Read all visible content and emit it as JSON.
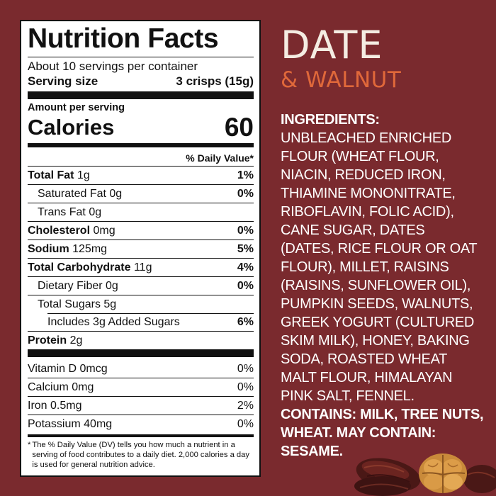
{
  "label": {
    "title": "Nutrition Facts",
    "servings_per_container": "About 10 servings per container",
    "serving_size_label": "Serving size",
    "serving_size_value": "3 crisps (15g)",
    "amount_per_serving": "Amount per serving",
    "calories_label": "Calories",
    "calories_value": "60",
    "dv_header": "% Daily Value*",
    "nutrients": [
      {
        "name": "Total Fat",
        "amount": "1g",
        "dv": "1%"
      },
      {
        "name": "Saturated Fat",
        "amount": "0g",
        "dv": "0%"
      },
      {
        "name": "Trans Fat",
        "amount": "0g",
        "dv": ""
      },
      {
        "name": "Cholesterol",
        "amount": "0mg",
        "dv": "0%"
      },
      {
        "name": "Sodium",
        "amount": "125mg",
        "dv": "5%"
      },
      {
        "name": "Total Carbohydrate",
        "amount": "11g",
        "dv": "4%"
      },
      {
        "name": "Dietary Fiber",
        "amount": "0g",
        "dv": "0%"
      },
      {
        "name": "Total Sugars",
        "amount": "5g",
        "dv": ""
      },
      {
        "name": "Includes 3g Added Sugars",
        "amount": "",
        "dv": "6%"
      },
      {
        "name": "Protein",
        "amount": "2g",
        "dv": ""
      }
    ],
    "vitamins": [
      {
        "name": "Vitamin D",
        "amount": "0mcg",
        "dv": "0%"
      },
      {
        "name": "Calcium",
        "amount": "0mg",
        "dv": "0%"
      },
      {
        "name": "Iron",
        "amount": "0.5mg",
        "dv": "2%"
      },
      {
        "name": "Potassium",
        "amount": "40mg",
        "dv": "0%"
      }
    ],
    "footnote_star": "*",
    "footnote": "The % Daily Value (DV) tells you how much a nutrient in a serving of food contributes to a daily diet. 2,000 calories a day is used for general nutrition advice."
  },
  "product": {
    "name": "DATE",
    "flavor": "& WALNUT"
  },
  "ingredients": {
    "heading": "INGREDIENTS:",
    "lines": [
      "UNBLEACHED ENRICHED",
      "FLOUR (WHEAT FLOUR,",
      "NIACIN, REDUCED IRON,",
      "THIAMINE MONONITRATE,",
      "RIBOFLAVIN, FOLIC ACID),",
      "CANE SUGAR, DATES",
      "(DATES, RICE FLOUR OR OAT",
      "FLOUR), MILLET, RAISINS",
      "(RAISINS, SUNFLOWER OIL),",
      "PUMPKIN SEEDS, WALNUTS,",
      "GREEK YOGURT (CULTURED",
      "SKIM MILK), HONEY, BAKING",
      "SODA, ROASTED WHEAT",
      "MALT FLOUR, HIMALAYAN",
      "PINK SALT, FENNEL."
    ],
    "contains_lines": [
      "CONTAINS: MILK, TREE NUTS,",
      "WHEAT.  MAY CONTAIN:",
      "SESAME."
    ]
  },
  "colors": {
    "background": "#7a2a2e",
    "title_cream": "#f4ece2",
    "flavor_orange": "#e0683a"
  },
  "icons": [
    "dates-image",
    "walnut-image"
  ]
}
